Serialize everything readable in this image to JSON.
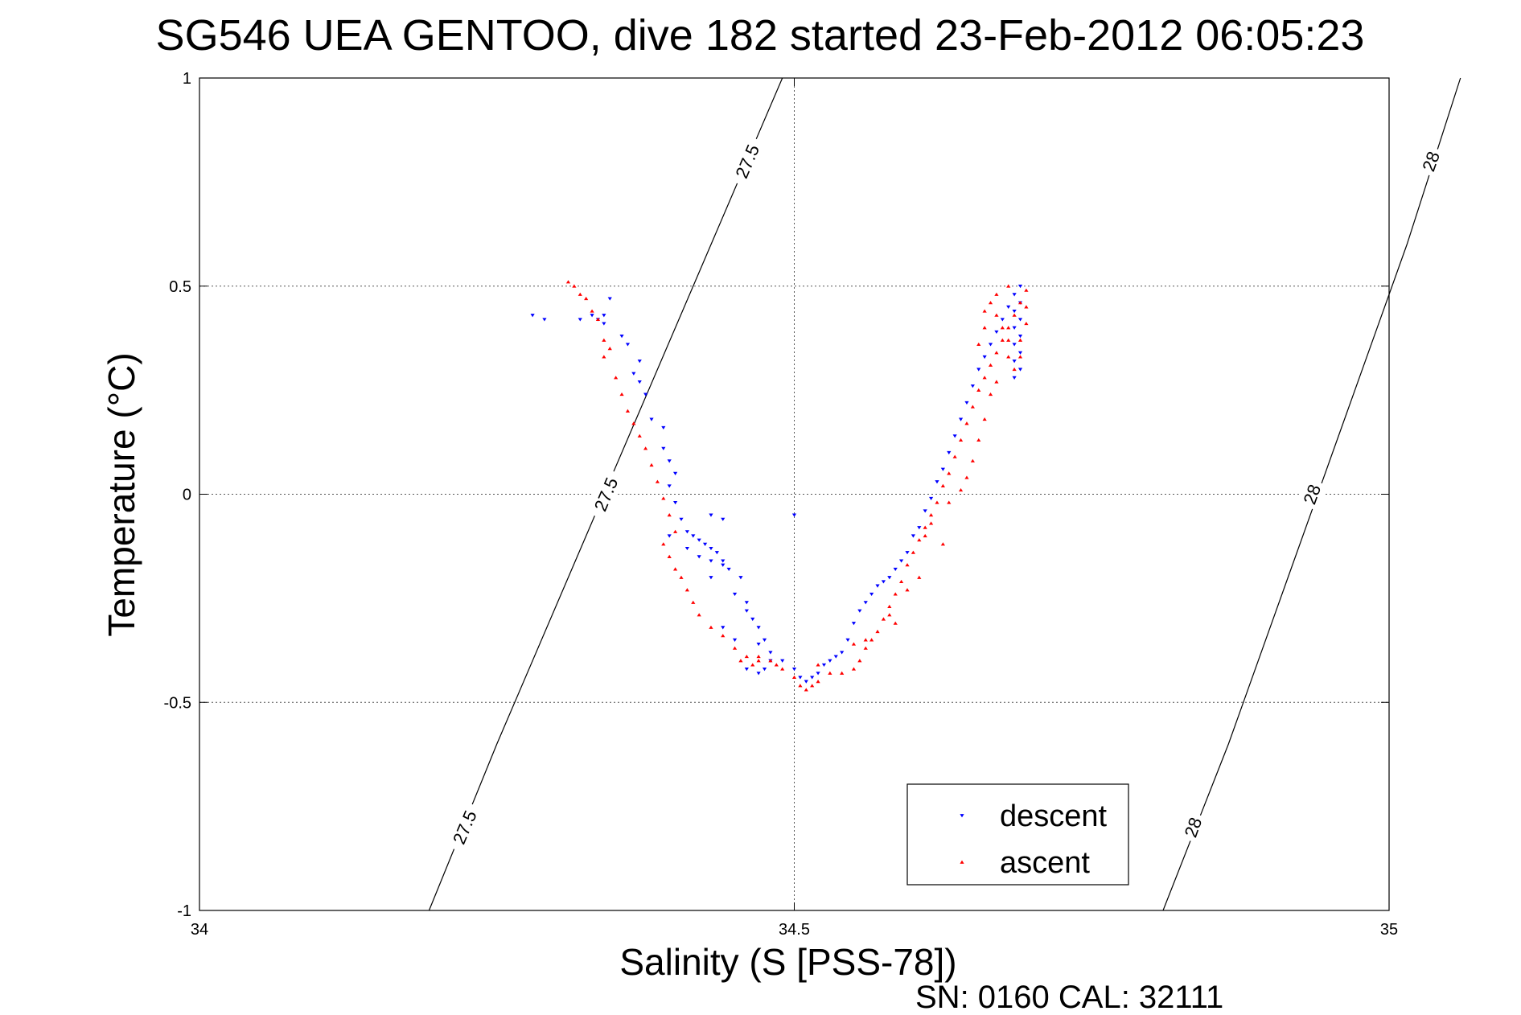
{
  "chart_data": {
    "type": "scatter",
    "title": "SG546 UEA GENTOO, dive 182 started 23-Feb-2012 06:05:23",
    "xlabel": "Salinity (S [PSS-78])",
    "ylabel": "Temperature (°C)",
    "xlim": [
      34,
      35
    ],
    "ylim": [
      -1,
      1
    ],
    "xticks": [
      34,
      34.5,
      35
    ],
    "xtick_labels": [
      "34",
      "34.5",
      "35"
    ],
    "yticks": [
      -1,
      -0.5,
      0,
      0.5,
      1
    ],
    "ytick_labels": [
      "-1",
      "-0.5",
      "0",
      "0.5",
      "1"
    ],
    "grid": true,
    "legend_position": "bottom-right",
    "density_contours": [
      {
        "value": 27.5,
        "points": [
          [
            34.193,
            -1.0
          ],
          [
            34.25,
            -0.6
          ],
          [
            34.31,
            -0.2
          ],
          [
            34.37,
            0.2
          ],
          [
            34.43,
            0.6
          ],
          [
            34.49,
            1.0
          ]
        ],
        "labels": [
          "27.5",
          "27.5",
          "27.5"
        ]
      },
      {
        "value": 28,
        "points": [
          [
            34.81,
            -1.0
          ],
          [
            34.865,
            -0.6
          ],
          [
            34.915,
            -0.2
          ],
          [
            34.965,
            0.2
          ],
          [
            35.015,
            0.6
          ],
          [
            35.06,
            1.0
          ]
        ],
        "labels": [
          "28",
          "28",
          "28"
        ]
      }
    ],
    "series": [
      {
        "name": "descent",
        "color": "#0000ff",
        "marker": "triangle-down",
        "points": [
          [
            34.32,
            0.42
          ],
          [
            34.33,
            0.43
          ],
          [
            34.335,
            0.42
          ],
          [
            34.34,
            0.41
          ],
          [
            34.34,
            0.43
          ],
          [
            34.345,
            0.47
          ],
          [
            34.355,
            0.38
          ],
          [
            34.36,
            0.36
          ],
          [
            34.37,
            0.32
          ],
          [
            34.365,
            0.29
          ],
          [
            34.37,
            0.27
          ],
          [
            34.375,
            0.24
          ],
          [
            34.38,
            0.18
          ],
          [
            34.39,
            0.16
          ],
          [
            34.39,
            0.11
          ],
          [
            34.395,
            0.08
          ],
          [
            34.4,
            0.05
          ],
          [
            34.395,
            0.02
          ],
          [
            34.4,
            -0.02
          ],
          [
            34.405,
            -0.06
          ],
          [
            34.41,
            -0.09
          ],
          [
            34.415,
            -0.1
          ],
          [
            34.42,
            -0.11
          ],
          [
            34.425,
            -0.12
          ],
          [
            34.43,
            -0.13
          ],
          [
            34.435,
            -0.14
          ],
          [
            34.44,
            -0.16
          ],
          [
            34.445,
            -0.18
          ],
          [
            34.43,
            -0.16
          ],
          [
            34.42,
            -0.15
          ],
          [
            34.44,
            -0.17
          ],
          [
            34.455,
            -0.2
          ],
          [
            34.46,
            -0.26
          ],
          [
            34.465,
            -0.3
          ],
          [
            34.47,
            -0.32
          ],
          [
            34.475,
            -0.35
          ],
          [
            34.48,
            -0.38
          ],
          [
            34.49,
            -0.4
          ],
          [
            34.5,
            -0.42
          ],
          [
            34.505,
            -0.44
          ],
          [
            34.51,
            -0.45
          ],
          [
            34.515,
            -0.44
          ],
          [
            34.52,
            -0.43
          ],
          [
            34.525,
            -0.41
          ],
          [
            34.53,
            -0.4
          ],
          [
            34.535,
            -0.39
          ],
          [
            34.54,
            -0.38
          ],
          [
            34.545,
            -0.35
          ],
          [
            34.55,
            -0.31
          ],
          [
            34.555,
            -0.28
          ],
          [
            34.56,
            -0.26
          ],
          [
            34.565,
            -0.24
          ],
          [
            34.57,
            -0.22
          ],
          [
            34.575,
            -0.21
          ],
          [
            34.58,
            -0.2
          ],
          [
            34.585,
            -0.18
          ],
          [
            34.59,
            -0.16
          ],
          [
            34.595,
            -0.14
          ],
          [
            34.6,
            -0.1
          ],
          [
            34.605,
            -0.08
          ],
          [
            34.61,
            -0.04
          ],
          [
            34.615,
            -0.01
          ],
          [
            34.62,
            0.03
          ],
          [
            34.625,
            0.06
          ],
          [
            34.63,
            0.1
          ],
          [
            34.635,
            0.14
          ],
          [
            34.64,
            0.18
          ],
          [
            34.645,
            0.22
          ],
          [
            34.65,
            0.26
          ],
          [
            34.655,
            0.3
          ],
          [
            34.66,
            0.33
          ],
          [
            34.665,
            0.36
          ],
          [
            34.67,
            0.39
          ],
          [
            34.675,
            0.42
          ],
          [
            34.68,
            0.45
          ],
          [
            34.685,
            0.48
          ],
          [
            34.69,
            0.5
          ],
          [
            34.69,
            0.46
          ],
          [
            34.69,
            0.42
          ],
          [
            34.69,
            0.38
          ],
          [
            34.69,
            0.34
          ],
          [
            34.69,
            0.3
          ],
          [
            34.685,
            0.28
          ],
          [
            34.685,
            0.32
          ],
          [
            34.685,
            0.36
          ],
          [
            34.685,
            0.4
          ],
          [
            34.685,
            0.44
          ],
          [
            34.43,
            -0.05
          ],
          [
            34.44,
            -0.06
          ],
          [
            34.5,
            -0.05
          ],
          [
            34.28,
            0.43
          ],
          [
            34.29,
            0.42
          ],
          [
            34.395,
            -0.1
          ],
          [
            34.41,
            -0.13
          ],
          [
            34.45,
            -0.24
          ],
          [
            34.46,
            -0.28
          ],
          [
            34.47,
            -0.36
          ],
          [
            34.48,
            -0.4
          ],
          [
            34.46,
            -0.42
          ],
          [
            34.47,
            -0.43
          ],
          [
            34.475,
            -0.42
          ],
          [
            34.44,
            -0.32
          ],
          [
            34.45,
            -0.35
          ],
          [
            34.43,
            -0.2
          ]
        ]
      },
      {
        "name": "ascent",
        "color": "#ff0000",
        "marker": "triangle-up",
        "points": [
          [
            34.31,
            0.51
          ],
          [
            34.315,
            0.5
          ],
          [
            34.32,
            0.48
          ],
          [
            34.325,
            0.47
          ],
          [
            34.33,
            0.44
          ],
          [
            34.335,
            0.42
          ],
          [
            34.34,
            0.37
          ],
          [
            34.345,
            0.35
          ],
          [
            34.34,
            0.33
          ],
          [
            34.35,
            0.28
          ],
          [
            34.355,
            0.24
          ],
          [
            34.36,
            0.2
          ],
          [
            34.365,
            0.17
          ],
          [
            34.37,
            0.14
          ],
          [
            34.375,
            0.11
          ],
          [
            34.38,
            0.07
          ],
          [
            34.385,
            0.03
          ],
          [
            34.39,
            -0.01
          ],
          [
            34.395,
            -0.05
          ],
          [
            34.4,
            -0.09
          ],
          [
            34.39,
            -0.12
          ],
          [
            34.395,
            -0.15
          ],
          [
            34.4,
            -0.18
          ],
          [
            34.405,
            -0.2
          ],
          [
            34.41,
            -0.23
          ],
          [
            34.415,
            -0.26
          ],
          [
            34.42,
            -0.29
          ],
          [
            34.43,
            -0.32
          ],
          [
            34.44,
            -0.34
          ],
          [
            34.45,
            -0.37
          ],
          [
            34.46,
            -0.39
          ],
          [
            34.47,
            -0.4
          ],
          [
            34.48,
            -0.4
          ],
          [
            34.485,
            -0.41
          ],
          [
            34.49,
            -0.42
          ],
          [
            34.5,
            -0.44
          ],
          [
            34.505,
            -0.46
          ],
          [
            34.51,
            -0.47
          ],
          [
            34.515,
            -0.46
          ],
          [
            34.52,
            -0.45
          ],
          [
            34.53,
            -0.43
          ],
          [
            34.54,
            -0.43
          ],
          [
            34.55,
            -0.42
          ],
          [
            34.555,
            -0.4
          ],
          [
            34.56,
            -0.37
          ],
          [
            34.565,
            -0.35
          ],
          [
            34.57,
            -0.33
          ],
          [
            34.575,
            -0.3
          ],
          [
            34.58,
            -0.27
          ],
          [
            34.585,
            -0.24
          ],
          [
            34.59,
            -0.21
          ],
          [
            34.595,
            -0.17
          ],
          [
            34.6,
            -0.14
          ],
          [
            34.605,
            -0.11
          ],
          [
            34.61,
            -0.08
          ],
          [
            34.615,
            -0.05
          ],
          [
            34.62,
            -0.02
          ],
          [
            34.625,
            0.02
          ],
          [
            34.63,
            0.05
          ],
          [
            34.635,
            0.09
          ],
          [
            34.64,
            0.13
          ],
          [
            34.645,
            0.17
          ],
          [
            34.65,
            0.21
          ],
          [
            34.655,
            0.25
          ],
          [
            34.66,
            0.28
          ],
          [
            34.665,
            0.31
          ],
          [
            34.67,
            0.34
          ],
          [
            34.675,
            0.37
          ],
          [
            34.68,
            0.4
          ],
          [
            34.685,
            0.43
          ],
          [
            34.69,
            0.46
          ],
          [
            34.695,
            0.49
          ],
          [
            34.695,
            0.45
          ],
          [
            34.695,
            0.41
          ],
          [
            34.69,
            0.37
          ],
          [
            34.69,
            0.33
          ],
          [
            34.685,
            0.3
          ],
          [
            34.68,
            0.33
          ],
          [
            34.68,
            0.37
          ],
          [
            34.675,
            0.4
          ],
          [
            34.67,
            0.43
          ],
          [
            34.665,
            0.46
          ],
          [
            34.66,
            0.4
          ],
          [
            34.655,
            0.36
          ],
          [
            34.66,
            0.44
          ],
          [
            34.67,
            0.48
          ],
          [
            34.68,
            0.5
          ],
          [
            34.52,
            -0.41
          ],
          [
            34.55,
            -0.36
          ],
          [
            34.56,
            -0.35
          ],
          [
            34.58,
            -0.29
          ],
          [
            34.585,
            -0.31
          ],
          [
            34.595,
            -0.23
          ],
          [
            34.605,
            -0.2
          ],
          [
            34.61,
            -0.1
          ],
          [
            34.615,
            -0.07
          ],
          [
            34.625,
            -0.12
          ],
          [
            34.63,
            -0.02
          ],
          [
            34.64,
            0.01
          ],
          [
            34.645,
            0.04
          ],
          [
            34.65,
            0.08
          ],
          [
            34.655,
            0.13
          ],
          [
            34.66,
            0.18
          ],
          [
            34.665,
            0.24
          ],
          [
            34.67,
            0.27
          ],
          [
            34.455,
            -0.4
          ],
          [
            34.465,
            -0.41
          ],
          [
            34.47,
            -0.39
          ]
        ]
      }
    ],
    "legend": {
      "entries": [
        "descent",
        "ascent"
      ]
    }
  },
  "footer": {
    "text": "SN: 0160  CAL: 32111"
  }
}
